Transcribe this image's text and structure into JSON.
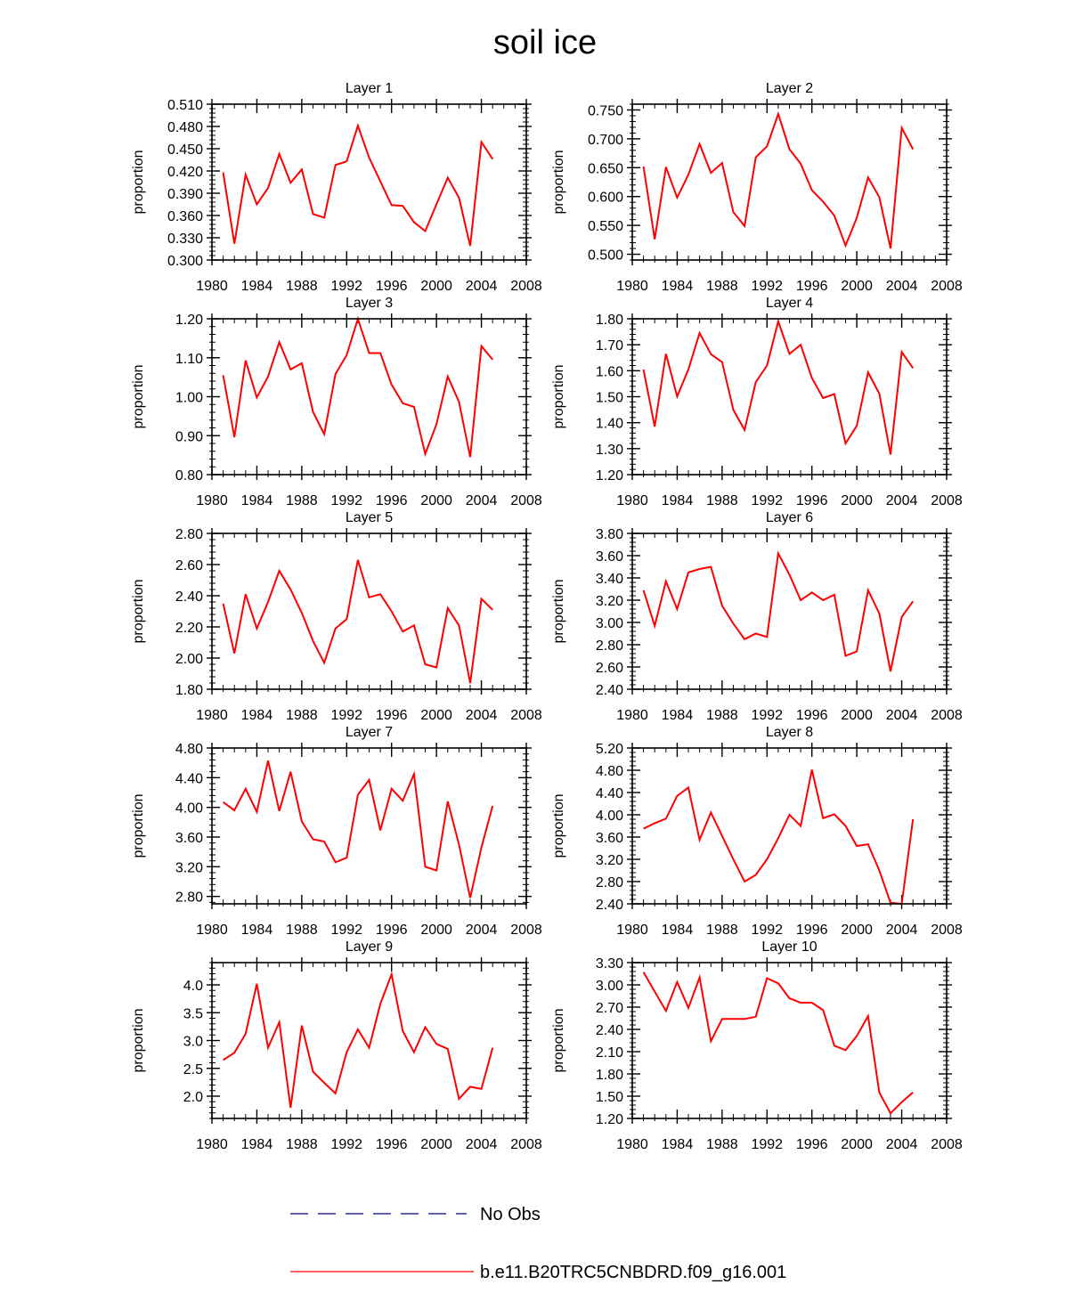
{
  "figure_title": "soil ice",
  "chart_data": [
    {
      "type": "line",
      "title": "Layer 1",
      "xlabel": "",
      "ylabel": "proportion",
      "xlim": [
        1980,
        2008
      ],
      "ylim": [
        0.3,
        0.51
      ],
      "xticks": [
        1980,
        1984,
        1988,
        1992,
        1996,
        2000,
        2004,
        2008
      ],
      "yticks": [
        "0.300",
        "0.330",
        "0.360",
        "0.390",
        "0.420",
        "0.450",
        "0.480",
        "0.510"
      ],
      "x": [
        1981,
        1982,
        1983,
        1984,
        1985,
        1986,
        1987,
        1988,
        1989,
        1990,
        1991,
        1992,
        1993,
        1994,
        1995,
        1996,
        1997,
        1998,
        1999,
        2000,
        2001,
        2002,
        2003,
        2004,
        2005
      ],
      "series": [
        {
          "name": "b.e11.B20TRC5CNBDRD.f09_g16.001",
          "color": "#ff0000",
          "values": [
            0.418,
            0.322,
            0.415,
            0.375,
            0.397,
            0.443,
            0.404,
            0.422,
            0.362,
            0.357,
            0.428,
            0.433,
            0.481,
            0.438,
            0.406,
            0.374,
            0.373,
            0.351,
            0.339,
            0.375,
            0.411,
            0.384,
            0.319,
            0.459,
            0.436
          ]
        }
      ]
    },
    {
      "type": "line",
      "title": "Layer 2",
      "xlabel": "",
      "ylabel": "proportion",
      "xlim": [
        1980,
        2008
      ],
      "ylim": [
        0.49,
        0.76
      ],
      "xticks": [
        1980,
        1984,
        1988,
        1992,
        1996,
        2000,
        2004,
        2008
      ],
      "yticks": [
        "0.500",
        "0.550",
        "0.600",
        "0.650",
        "0.700",
        "0.750"
      ],
      "x": [
        1981,
        1982,
        1983,
        1984,
        1985,
        1986,
        1987,
        1988,
        1989,
        1990,
        1991,
        1992,
        1993,
        1994,
        1995,
        1996,
        1997,
        1998,
        1999,
        2000,
        2001,
        2002,
        2003,
        2004,
        2005
      ],
      "series": [
        {
          "name": "b.e11.B20TRC5CNBDRD.f09_g16.001",
          "color": "#ff0000",
          "values": [
            0.652,
            0.526,
            0.651,
            0.598,
            0.638,
            0.691,
            0.641,
            0.658,
            0.573,
            0.549,
            0.668,
            0.687,
            0.743,
            0.682,
            0.657,
            0.611,
            0.591,
            0.567,
            0.515,
            0.563,
            0.633,
            0.599,
            0.51,
            0.719,
            0.682
          ]
        }
      ]
    },
    {
      "type": "line",
      "title": "Layer 3",
      "xlabel": "",
      "ylabel": "proportion",
      "xlim": [
        1980,
        2008
      ],
      "ylim": [
        0.8,
        1.2
      ],
      "xticks": [
        1980,
        1984,
        1988,
        1992,
        1996,
        2000,
        2004,
        2008
      ],
      "yticks": [
        "0.80",
        "0.90",
        "1.00",
        "1.10",
        "1.20"
      ],
      "x": [
        1981,
        1982,
        1983,
        1984,
        1985,
        1986,
        1987,
        1988,
        1989,
        1990,
        1991,
        1992,
        1993,
        1994,
        1995,
        1996,
        1997,
        1998,
        1999,
        2000,
        2001,
        2002,
        2003,
        2004,
        2005
      ],
      "series": [
        {
          "name": "b.e11.B20TRC5CNBDRD.f09_g16.001",
          "color": "#ff0000",
          "values": [
            1.055,
            0.896,
            1.093,
            0.998,
            1.052,
            1.14,
            1.07,
            1.086,
            0.961,
            0.904,
            1.058,
            1.107,
            1.2,
            1.112,
            1.112,
            1.031,
            0.983,
            0.974,
            0.853,
            0.929,
            1.052,
            0.987,
            0.845,
            1.13,
            1.095
          ]
        }
      ]
    },
    {
      "type": "line",
      "title": "Layer 4",
      "xlabel": "",
      "ylabel": "proportion",
      "xlim": [
        1980,
        2008
      ],
      "ylim": [
        1.2,
        1.8
      ],
      "xticks": [
        1980,
        1984,
        1988,
        1992,
        1996,
        2000,
        2004,
        2008
      ],
      "yticks": [
        "1.20",
        "1.30",
        "1.40",
        "1.50",
        "1.60",
        "1.70",
        "1.80"
      ],
      "x": [
        1981,
        1982,
        1983,
        1984,
        1985,
        1986,
        1987,
        1988,
        1989,
        1990,
        1991,
        1992,
        1993,
        1994,
        1995,
        1996,
        1997,
        1998,
        1999,
        2000,
        2001,
        2002,
        2003,
        2004,
        2005
      ],
      "series": [
        {
          "name": "b.e11.B20TRC5CNBDRD.f09_g16.001",
          "color": "#ff0000",
          "values": [
            1.605,
            1.385,
            1.665,
            1.501,
            1.605,
            1.745,
            1.664,
            1.633,
            1.449,
            1.372,
            1.556,
            1.62,
            1.79,
            1.665,
            1.7,
            1.572,
            1.495,
            1.51,
            1.32,
            1.388,
            1.594,
            1.512,
            1.277,
            1.672,
            1.61
          ]
        }
      ]
    },
    {
      "type": "line",
      "title": "Layer 5",
      "xlabel": "",
      "ylabel": "proportion",
      "xlim": [
        1980,
        2008
      ],
      "ylim": [
        1.8,
        2.8
      ],
      "xticks": [
        1980,
        1984,
        1988,
        1992,
        1996,
        2000,
        2004,
        2008
      ],
      "yticks": [
        "1.80",
        "2.00",
        "2.20",
        "2.40",
        "2.60",
        "2.80"
      ],
      "x": [
        1981,
        1982,
        1983,
        1984,
        1985,
        1986,
        1987,
        1988,
        1989,
        1990,
        1991,
        1992,
        1993,
        1994,
        1995,
        1996,
        1997,
        1998,
        1999,
        2000,
        2001,
        2002,
        2003,
        2004,
        2005
      ],
      "series": [
        {
          "name": "b.e11.B20TRC5CNBDRD.f09_g16.001",
          "color": "#ff0000",
          "values": [
            2.35,
            2.03,
            2.41,
            2.19,
            2.36,
            2.56,
            2.44,
            2.29,
            2.11,
            1.97,
            2.19,
            2.25,
            2.63,
            2.39,
            2.41,
            2.3,
            2.17,
            2.21,
            1.96,
            1.94,
            2.32,
            2.21,
            1.84,
            2.38,
            2.31
          ]
        }
      ]
    },
    {
      "type": "line",
      "title": "Layer 6",
      "xlabel": "",
      "ylabel": "proportion",
      "xlim": [
        1980,
        2008
      ],
      "ylim": [
        2.4,
        3.8
      ],
      "xticks": [
        1980,
        1984,
        1988,
        1992,
        1996,
        2000,
        2004,
        2008
      ],
      "yticks": [
        "2.40",
        "2.60",
        "2.80",
        "3.00",
        "3.20",
        "3.40",
        "3.60",
        "3.80"
      ],
      "x": [
        1981,
        1982,
        1983,
        1984,
        1985,
        1986,
        1987,
        1988,
        1989,
        1990,
        1991,
        1992,
        1993,
        1994,
        1995,
        1996,
        1997,
        1998,
        1999,
        2000,
        2001,
        2002,
        2003,
        2004,
        2005
      ],
      "series": [
        {
          "name": "b.e11.B20TRC5CNBDRD.f09_g16.001",
          "color": "#ff0000",
          "values": [
            3.29,
            2.97,
            3.37,
            3.12,
            3.45,
            3.48,
            3.5,
            3.15,
            2.99,
            2.85,
            2.9,
            2.87,
            3.62,
            3.43,
            3.2,
            3.27,
            3.2,
            3.25,
            2.7,
            2.74,
            3.29,
            3.08,
            2.56,
            3.05,
            3.19
          ]
        }
      ]
    },
    {
      "type": "line",
      "title": "Layer 7",
      "xlabel": "",
      "ylabel": "proportion",
      "xlim": [
        1980,
        2008
      ],
      "ylim": [
        2.7,
        4.8
      ],
      "xticks": [
        1980,
        1984,
        1988,
        1992,
        1996,
        2000,
        2004,
        2008
      ],
      "yticks": [
        "2.80",
        "3.20",
        "3.60",
        "4.00",
        "4.40",
        "4.80"
      ],
      "x": [
        1981,
        1982,
        1983,
        1984,
        1985,
        1986,
        1987,
        1988,
        1989,
        1990,
        1991,
        1992,
        1993,
        1994,
        1995,
        1996,
        1997,
        1998,
        1999,
        2000,
        2001,
        2002,
        2003,
        2004,
        2005
      ],
      "series": [
        {
          "name": "b.e11.B20TRC5CNBDRD.f09_g16.001",
          "color": "#ff0000",
          "values": [
            4.07,
            3.96,
            4.25,
            3.94,
            4.63,
            3.95,
            4.48,
            3.81,
            3.57,
            3.54,
            3.26,
            3.32,
            4.17,
            4.37,
            3.69,
            4.25,
            4.09,
            4.45,
            3.2,
            3.15,
            4.08,
            3.5,
            2.78,
            3.46,
            4.02
          ]
        }
      ]
    },
    {
      "type": "line",
      "title": "Layer 8",
      "xlabel": "",
      "ylabel": "proportion",
      "xlim": [
        1980,
        2008
      ],
      "ylim": [
        2.4,
        5.2
      ],
      "xticks": [
        1980,
        1984,
        1988,
        1992,
        1996,
        2000,
        2004,
        2008
      ],
      "yticks": [
        "2.40",
        "2.80",
        "3.20",
        "3.60",
        "4.00",
        "4.40",
        "4.80",
        "5.20"
      ],
      "x": [
        1981,
        1982,
        1983,
        1984,
        1985,
        1986,
        1987,
        1988,
        1989,
        1990,
        1991,
        1992,
        1993,
        1994,
        1995,
        1996,
        1997,
        1998,
        1999,
        2000,
        2001,
        2002,
        2003,
        2004,
        2005
      ],
      "series": [
        {
          "name": "b.e11.B20TRC5CNBDRD.f09_g16.001",
          "color": "#ff0000",
          "values": [
            3.75,
            3.85,
            3.93,
            4.34,
            4.49,
            3.55,
            4.04,
            3.62,
            3.2,
            2.8,
            2.92,
            3.2,
            3.58,
            4.0,
            3.8,
            4.81,
            3.94,
            4.01,
            3.8,
            3.44,
            3.47,
            3.0,
            2.42,
            2.4,
            3.92
          ]
        }
      ]
    },
    {
      "type": "line",
      "title": "Layer 9",
      "xlabel": "",
      "ylabel": "proportion",
      "xlim": [
        1980,
        2008
      ],
      "ylim": [
        1.6,
        4.4
      ],
      "xticks": [
        1980,
        1984,
        1988,
        1992,
        1996,
        2000,
        2004,
        2008
      ],
      "yticks": [
        "2.0",
        "2.5",
        "3.0",
        "3.5",
        "4.0"
      ],
      "x": [
        1981,
        1982,
        1983,
        1984,
        1985,
        1986,
        1987,
        1988,
        1989,
        1990,
        1991,
        1992,
        1993,
        1994,
        1995,
        1996,
        1997,
        1998,
        1999,
        2000,
        2001,
        2002,
        2003,
        2004,
        2005
      ],
      "series": [
        {
          "name": "b.e11.B20TRC5CNBDRD.f09_g16.001",
          "color": "#ff0000",
          "values": [
            2.65,
            2.78,
            3.12,
            4.02,
            2.87,
            3.33,
            1.79,
            3.27,
            2.44,
            2.24,
            2.05,
            2.79,
            3.2,
            2.87,
            3.66,
            4.19,
            3.17,
            2.79,
            3.24,
            2.94,
            2.85,
            1.95,
            2.17,
            2.13,
            2.87
          ]
        }
      ]
    },
    {
      "type": "line",
      "title": "Layer 10",
      "xlabel": "",
      "ylabel": "proportion",
      "xlim": [
        1980,
        2008
      ],
      "ylim": [
        1.2,
        3.3
      ],
      "xticks": [
        1980,
        1984,
        1988,
        1992,
        1996,
        2000,
        2004,
        2008
      ],
      "yticks": [
        "1.20",
        "1.50",
        "1.80",
        "2.10",
        "2.40",
        "2.70",
        "3.00",
        "3.30"
      ],
      "x": [
        1981,
        1982,
        1983,
        1984,
        1985,
        1986,
        1987,
        1988,
        1989,
        1990,
        1991,
        1992,
        1993,
        1994,
        1995,
        1996,
        1997,
        1998,
        1999,
        2000,
        2001,
        2002,
        2003,
        2004,
        2005
      ],
      "series": [
        {
          "name": "b.e11.B20TRC5CNBDRD.f09_g16.001",
          "color": "#ff0000",
          "values": [
            3.17,
            2.91,
            2.65,
            3.04,
            2.69,
            3.1,
            2.24,
            2.54,
            2.54,
            2.54,
            2.57,
            3.09,
            3.02,
            2.82,
            2.76,
            2.76,
            2.66,
            2.18,
            2.12,
            2.31,
            2.58,
            1.55,
            1.27,
            1.42,
            1.55
          ]
        }
      ]
    }
  ],
  "legend": {
    "position": "bottom-center",
    "items": [
      {
        "label": "No Obs",
        "color": "#000080",
        "style": "dashed"
      },
      {
        "label": "b.e11.B20TRC5CNBDRD.f09_g16.001",
        "color": "#ff0000",
        "style": "solid"
      }
    ]
  }
}
